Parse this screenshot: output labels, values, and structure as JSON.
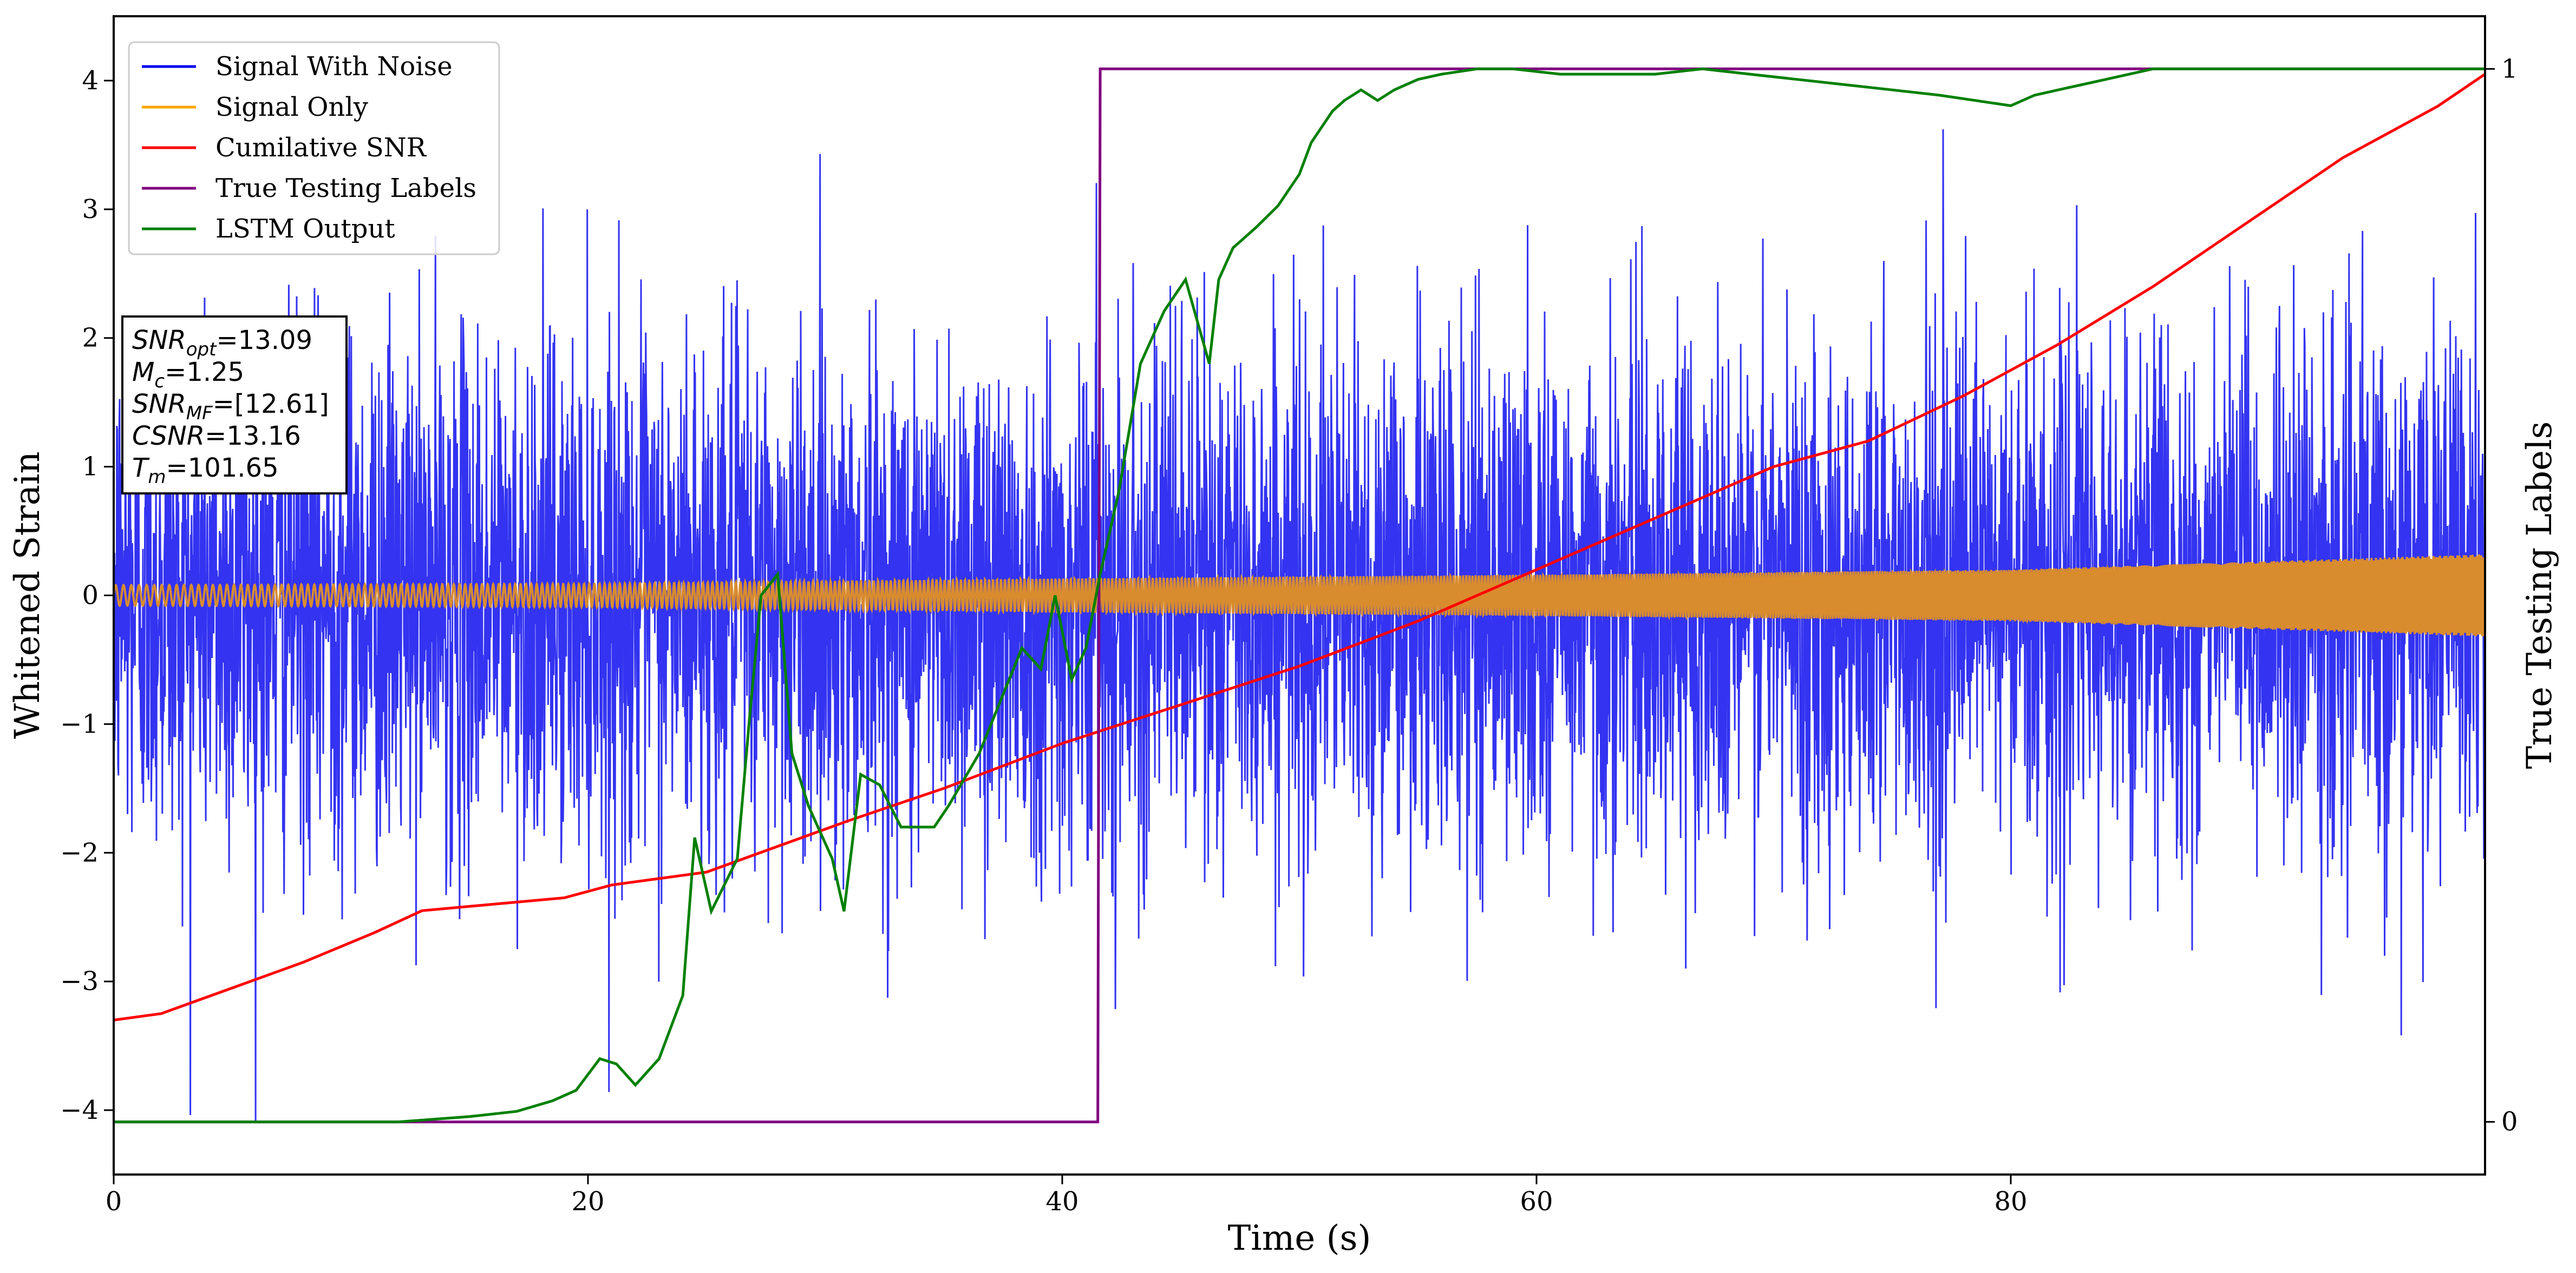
{
  "chart_data": {
    "type": "line",
    "xlabel": "Time (s)",
    "ylabel": "Whitened Strain",
    "ylabel_right": "True Testing Labels",
    "xlim": [
      0,
      100
    ],
    "ylim": [
      -4.5,
      4.5
    ],
    "ylim_right": [
      -0.05,
      1.05
    ],
    "x_ticks": [
      0,
      20,
      40,
      60,
      80
    ],
    "y_ticks": [
      -4,
      -3,
      -2,
      -1,
      0,
      1,
      2,
      3,
      4
    ],
    "y_ticks_right": [
      0,
      1
    ],
    "grid": false,
    "legend_position": "top-left",
    "series": [
      {
        "name": "Signal With Noise",
        "axis": "left",
        "color": "#0000ee",
        "description": "dense noisy strain, roughly symmetric about 0",
        "typical_amplitude": 1.0,
        "peak_high": 3.7,
        "peak_low": -4.1
      },
      {
        "name": "Signal Only",
        "axis": "left",
        "color": "#ffa500",
        "description": "chirp waveform, envelope amplitude growing with time",
        "envelope": {
          "x": [
            0,
            20,
            40,
            60,
            80,
            100
          ],
          "y": [
            0.08,
            0.09,
            0.13,
            0.16,
            0.2,
            0.32
          ]
        }
      },
      {
        "name": "Cumilative SNR",
        "axis": "left",
        "color": "#ff0000",
        "x": [
          0,
          2,
          5,
          8,
          11,
          13,
          16,
          19,
          21,
          23,
          25,
          28,
          31,
          35,
          40,
          45,
          50,
          55,
          60,
          65,
          70,
          74,
          78,
          82,
          86,
          90,
          94,
          98,
          100
        ],
        "y": [
          -3.3,
          -3.25,
          -3.05,
          -2.85,
          -2.62,
          -2.45,
          -2.4,
          -2.35,
          -2.25,
          -2.2,
          -2.15,
          -1.95,
          -1.75,
          -1.5,
          -1.15,
          -0.85,
          -0.55,
          -0.2,
          0.2,
          0.6,
          1.0,
          1.2,
          1.55,
          1.95,
          2.4,
          2.9,
          3.4,
          3.8,
          4.05
        ]
      },
      {
        "name": "True Testing Labels",
        "axis": "right",
        "color": "#800080",
        "x": [
          0,
          41.5,
          41.6,
          100
        ],
        "y": [
          0,
          0,
          1,
          1
        ]
      },
      {
        "name": "LSTM Output",
        "axis": "right",
        "color": "#008000",
        "x": [
          0,
          12,
          15,
          17,
          18.5,
          19.5,
          20.5,
          21.2,
          22,
          23,
          24,
          24.5,
          25.2,
          26.3,
          26.8,
          27.3,
          28,
          28.6,
          29.3,
          30.3,
          30.8,
          31.5,
          32.3,
          33.2,
          34,
          34.6,
          35.2,
          36.5,
          37.4,
          38.3,
          39.1,
          39.7,
          40.4,
          41,
          41.6,
          42.4,
          43.3,
          44.3,
          45.2,
          46.2,
          46.6,
          47.2,
          48.2,
          49.1,
          50,
          50.5,
          51.4,
          51.9,
          52.6,
          53.3,
          54,
          55,
          56,
          57.5,
          59,
          61,
          63,
          65,
          67,
          69,
          71,
          73,
          75,
          77,
          78.5,
          80,
          81,
          82,
          83,
          84,
          85,
          86,
          88,
          90,
          92,
          95,
          100
        ],
        "y": [
          0,
          0,
          0.005,
          0.01,
          0.02,
          0.03,
          0.06,
          0.055,
          0.035,
          0.06,
          0.12,
          0.27,
          0.2,
          0.25,
          0.38,
          0.5,
          0.52,
          0.35,
          0.3,
          0.25,
          0.2,
          0.33,
          0.32,
          0.28,
          0.28,
          0.28,
          0.3,
          0.35,
          0.4,
          0.45,
          0.43,
          0.5,
          0.42,
          0.45,
          0.52,
          0.6,
          0.72,
          0.77,
          0.8,
          0.72,
          0.8,
          0.83,
          0.85,
          0.87,
          0.9,
          0.93,
          0.96,
          0.97,
          0.98,
          0.97,
          0.98,
          0.99,
          0.995,
          1.0,
          1.0,
          0.995,
          0.995,
          0.995,
          1.0,
          0.995,
          0.99,
          0.985,
          0.98,
          0.975,
          0.97,
          0.965,
          0.975,
          0.98,
          0.985,
          0.99,
          0.995,
          1.0,
          1.0,
          1.0,
          1.0,
          1.0,
          1.0
        ]
      }
    ],
    "annotation_box": {
      "lines": [
        {
          "base": "SNR",
          "sub": "opt",
          "value": "=13.09"
        },
        {
          "base": "M",
          "sub": "c",
          "value": "=1.25"
        },
        {
          "base": "SNR",
          "sub": "MF",
          "value": "=[12.61]"
        },
        {
          "base": "CSNR",
          "sub": "",
          "value": "=13.16"
        },
        {
          "base": "T",
          "sub": "m",
          "value": "=101.65"
        }
      ]
    }
  }
}
